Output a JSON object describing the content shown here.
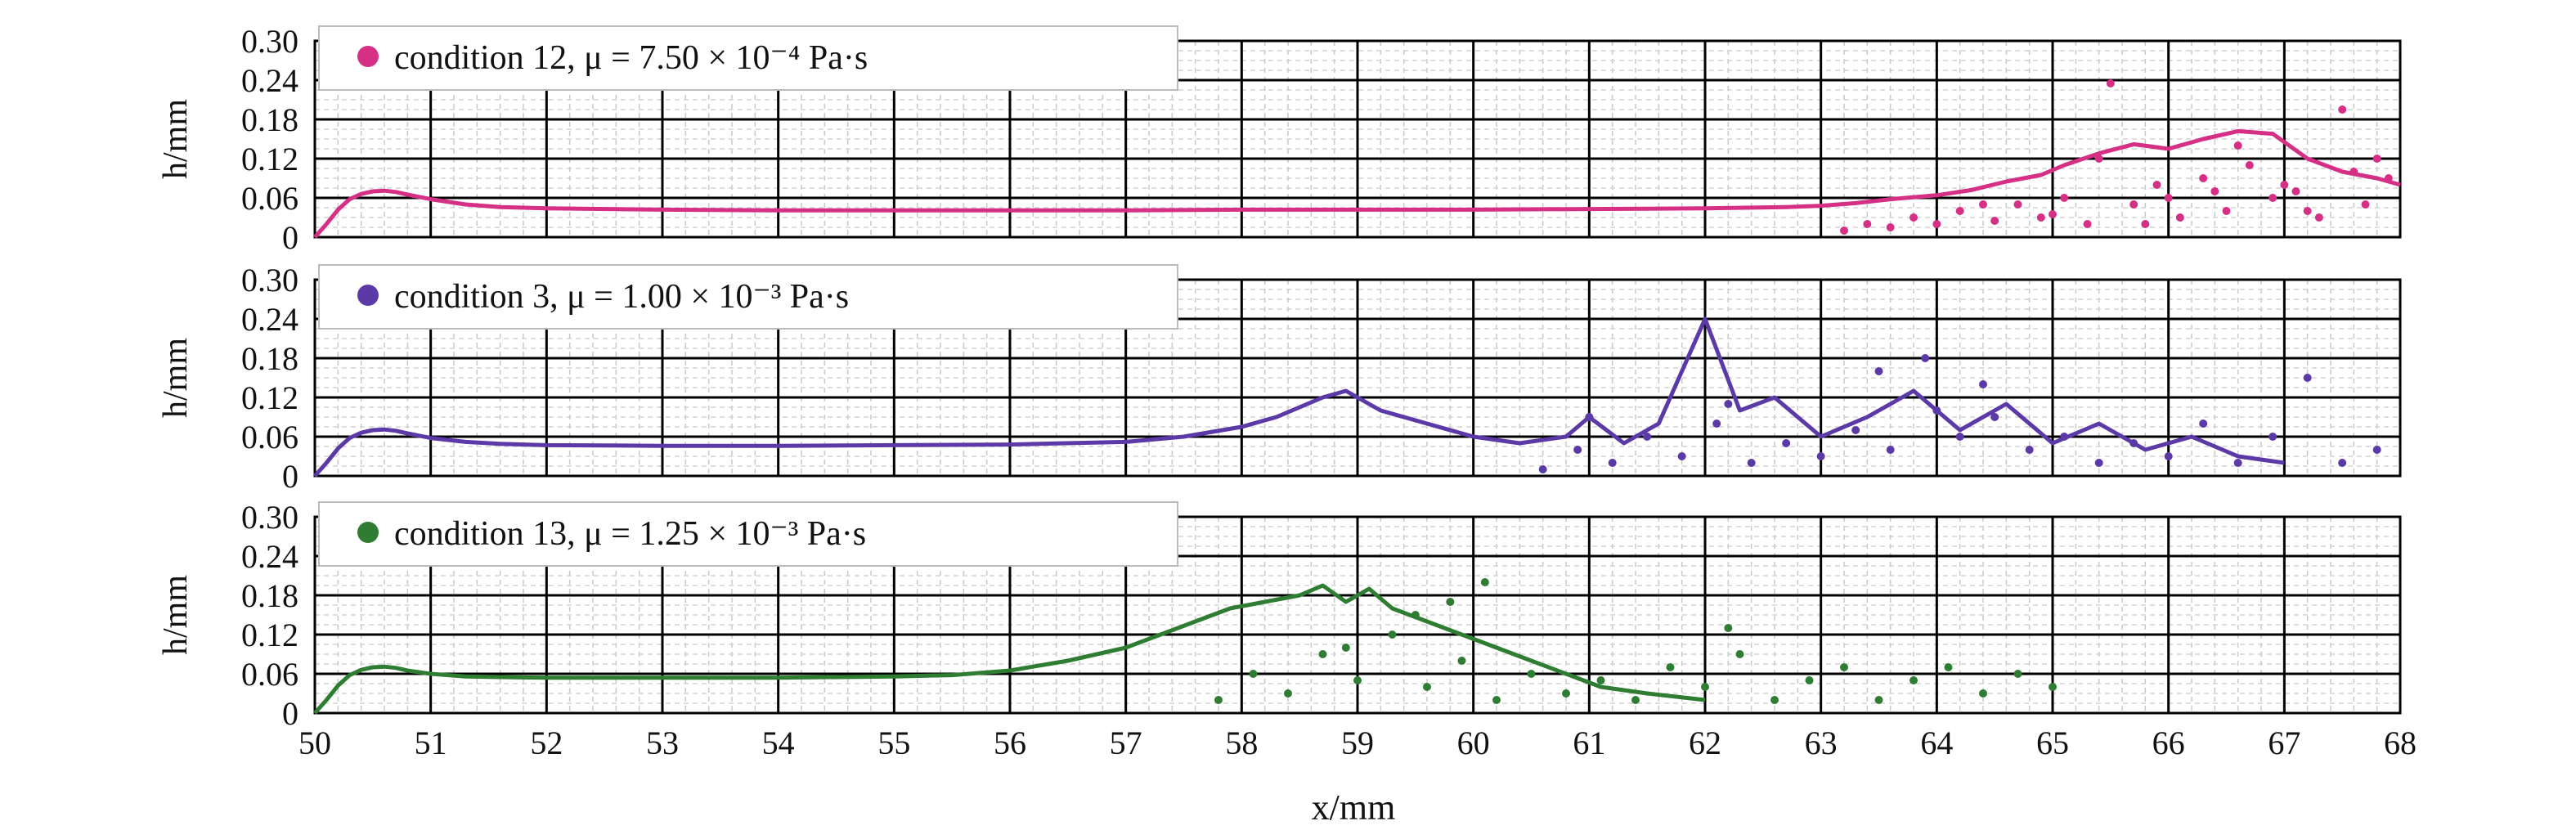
{
  "chart_data": {
    "type": "line",
    "shared_x_axis": {
      "label": "x/mm",
      "range": [
        50,
        68
      ],
      "ticks": [
        "50",
        "51",
        "52",
        "53",
        "54",
        "55",
        "56",
        "57",
        "58",
        "59",
        "60",
        "61",
        "62",
        "63",
        "64",
        "65",
        "66",
        "67",
        "68"
      ]
    },
    "panels": [
      {
        "legend": {
          "text": "condition 12, μ = 7.50 × 10⁻⁴ Pa·s",
          "color": "#d62f86"
        },
        "ylabel": "h/mm",
        "ylim": [
          0,
          0.3
        ],
        "yticks": [
          "0",
          "0.06",
          "0.12",
          "0.18",
          "0.24",
          "0.30"
        ],
        "series": [
          {
            "style": "line",
            "x": [
              50.0,
              50.1,
              50.2,
              50.3,
              50.4,
              50.5,
              50.6,
              50.7,
              50.8,
              51.0,
              51.3,
              51.6,
              52.0,
              53.0,
              54.0,
              55.0,
              56.0,
              57.0,
              58.0,
              59.0,
              60.0,
              61.0,
              62.0,
              62.7,
              63.0,
              63.3,
              63.6,
              64.0,
              64.3,
              64.6,
              64.9,
              65.1,
              65.4,
              65.7,
              66.0,
              66.3,
              66.6,
              66.9,
              67.2,
              67.5,
              67.8,
              68.0
            ],
            "y": [
              0.0,
              0.02,
              0.042,
              0.058,
              0.066,
              0.07,
              0.071,
              0.069,
              0.065,
              0.058,
              0.05,
              0.046,
              0.044,
              0.042,
              0.041,
              0.041,
              0.041,
              0.041,
              0.042,
              0.042,
              0.042,
              0.043,
              0.044,
              0.046,
              0.048,
              0.052,
              0.058,
              0.064,
              0.072,
              0.085,
              0.095,
              0.11,
              0.128,
              0.142,
              0.135,
              0.15,
              0.162,
              0.158,
              0.12,
              0.1,
              0.09,
              0.08
            ]
          },
          {
            "style": "scatter",
            "x": [
              63.2,
              63.4,
              63.6,
              63.8,
              64.0,
              64.2,
              64.5,
              64.7,
              64.9,
              65.1,
              65.3,
              65.5,
              65.7,
              65.9,
              66.1,
              66.3,
              66.5,
              66.7,
              66.9,
              67.1,
              67.3,
              67.5,
              67.7,
              67.9,
              65.4,
              66.0,
              66.6,
              67.2,
              67.6,
              65.8,
              66.4,
              67.0,
              67.8,
              64.4,
              65.0
            ],
            "y": [
              0.01,
              0.02,
              0.015,
              0.03,
              0.02,
              0.04,
              0.025,
              0.05,
              0.03,
              0.06,
              0.02,
              0.235,
              0.05,
              0.08,
              0.03,
              0.09,
              0.04,
              0.11,
              0.06,
              0.07,
              0.03,
              0.195,
              0.05,
              0.09,
              0.12,
              0.06,
              0.14,
              0.04,
              0.1,
              0.02,
              0.07,
              0.08,
              0.12,
              0.05,
              0.035
            ]
          }
        ]
      },
      {
        "legend": {
          "text": "condition 3, μ = 1.00 × 10⁻³ Pa·s",
          "color": "#5b3aa8"
        },
        "ylabel": "h/mm",
        "ylim": [
          0,
          0.3
        ],
        "yticks": [
          "0",
          "0.06",
          "0.12",
          "0.18",
          "0.24",
          "0.30"
        ],
        "series": [
          {
            "style": "line",
            "x": [
              50.0,
              50.1,
              50.2,
              50.3,
              50.4,
              50.5,
              50.6,
              50.7,
              50.8,
              51.0,
              51.3,
              51.6,
              52.0,
              53.0,
              54.0,
              55.0,
              56.0,
              57.0,
              57.5,
              58.0,
              58.3,
              58.7,
              58.9,
              59.2,
              59.6,
              60.0,
              60.4,
              60.8,
              61.0,
              61.3,
              61.6,
              62.0,
              62.3,
              62.6,
              63.0,
              63.4,
              63.8,
              64.2,
              64.6,
              65.0,
              65.4,
              65.8,
              66.2,
              66.6,
              67.0
            ],
            "y": [
              0.0,
              0.02,
              0.042,
              0.058,
              0.066,
              0.07,
              0.071,
              0.069,
              0.065,
              0.058,
              0.052,
              0.049,
              0.047,
              0.046,
              0.046,
              0.047,
              0.048,
              0.052,
              0.06,
              0.075,
              0.09,
              0.12,
              0.13,
              0.1,
              0.08,
              0.06,
              0.05,
              0.06,
              0.09,
              0.05,
              0.08,
              0.24,
              0.1,
              0.12,
              0.06,
              0.09,
              0.13,
              0.07,
              0.11,
              0.05,
              0.08,
              0.04,
              0.06,
              0.03,
              0.02
            ]
          },
          {
            "style": "scatter",
            "x": [
              60.6,
              60.9,
              61.2,
              61.5,
              61.8,
              62.1,
              62.4,
              62.7,
              63.0,
              63.3,
              63.6,
              63.9,
              64.2,
              64.5,
              64.8,
              65.1,
              65.4,
              65.7,
              66.0,
              66.3,
              66.6,
              66.9,
              67.2,
              67.5,
              67.8,
              63.5,
              64.0,
              64.4,
              62.2,
              61.0
            ],
            "y": [
              0.01,
              0.04,
              0.02,
              0.06,
              0.03,
              0.08,
              0.02,
              0.05,
              0.03,
              0.07,
              0.04,
              0.18,
              0.06,
              0.09,
              0.04,
              0.06,
              0.02,
              0.05,
              0.03,
              0.08,
              0.02,
              0.06,
              0.15,
              0.02,
              0.04,
              0.16,
              0.1,
              0.14,
              0.11,
              0.09
            ]
          }
        ]
      },
      {
        "legend": {
          "text": "condition 13, μ = 1.25 × 10⁻³ Pa·s",
          "color": "#2f7d32"
        },
        "ylabel": "h/mm",
        "ylim": [
          0,
          0.3
        ],
        "yticks": [
          "0",
          "0.06",
          "0.12",
          "0.18",
          "0.24",
          "0.30"
        ],
        "series": [
          {
            "style": "line",
            "x": [
              50.0,
              50.1,
              50.2,
              50.3,
              50.4,
              50.5,
              50.6,
              50.7,
              50.8,
              51.0,
              51.3,
              51.6,
              52.0,
              53.0,
              54.0,
              55.0,
              55.5,
              56.0,
              56.5,
              57.0,
              57.3,
              57.6,
              57.9,
              58.2,
              58.5,
              58.7,
              58.9,
              59.1,
              59.3,
              59.6,
              59.9,
              60.2,
              60.5,
              60.8,
              61.1,
              61.5,
              62.0
            ],
            "y": [
              0.0,
              0.02,
              0.042,
              0.058,
              0.066,
              0.07,
              0.071,
              0.069,
              0.065,
              0.06,
              0.056,
              0.055,
              0.054,
              0.054,
              0.054,
              0.056,
              0.058,
              0.065,
              0.08,
              0.1,
              0.12,
              0.14,
              0.16,
              0.17,
              0.18,
              0.195,
              0.17,
              0.19,
              0.16,
              0.14,
              0.12,
              0.1,
              0.08,
              0.06,
              0.04,
              0.03,
              0.02
            ]
          },
          {
            "style": "scatter",
            "x": [
              57.8,
              58.1,
              58.4,
              58.7,
              59.0,
              59.3,
              59.6,
              59.9,
              60.2,
              60.5,
              60.8,
              61.1,
              61.4,
              61.7,
              62.0,
              62.3,
              62.6,
              62.9,
              63.2,
              63.5,
              63.8,
              64.1,
              64.4,
              64.7,
              65.0,
              60.1,
              59.5,
              62.2,
              58.9,
              59.8
            ],
            "y": [
              0.02,
              0.06,
              0.03,
              0.09,
              0.05,
              0.12,
              0.04,
              0.08,
              0.02,
              0.06,
              0.03,
              0.05,
              0.02,
              0.07,
              0.04,
              0.09,
              0.02,
              0.05,
              0.07,
              0.02,
              0.05,
              0.07,
              0.03,
              0.06,
              0.04,
              0.2,
              0.15,
              0.13,
              0.1,
              0.17
            ]
          }
        ]
      }
    ],
    "grid": true,
    "legend_position": "top-left"
  }
}
